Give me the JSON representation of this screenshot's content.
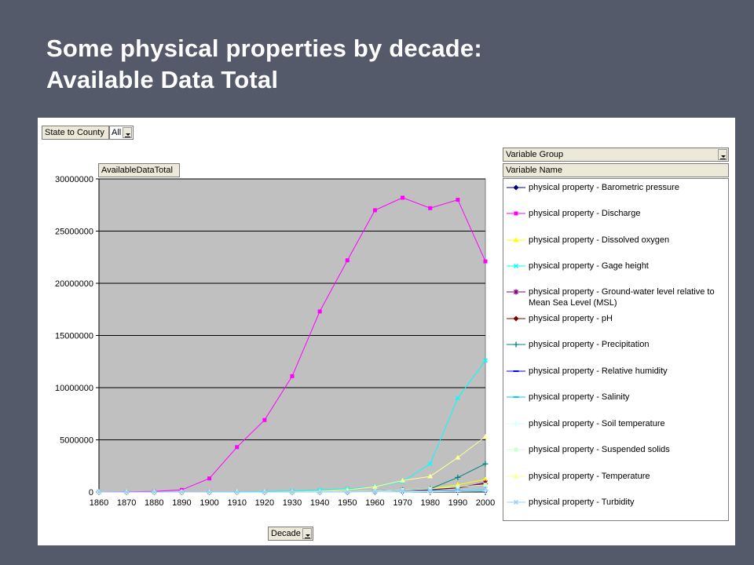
{
  "slide": {
    "title_line1": "Some physical properties by decade:",
    "title_line2": "Available Data Total"
  },
  "pivot": {
    "page_field_label": "State to County",
    "page_field_value": "All",
    "data_field_label": "AvailableDataTotal",
    "category_field_label": "Decade",
    "series_field_group": "Variable Group",
    "series_field_name": "Variable Name"
  },
  "chart_data": {
    "type": "line",
    "title": "",
    "xlabel": "",
    "ylabel": "",
    "x": [
      "1860",
      "1870",
      "1880",
      "1890",
      "1900",
      "1910",
      "1920",
      "1930",
      "1940",
      "1950",
      "1960",
      "1970",
      "1980",
      "1990",
      "2000"
    ],
    "ylim": [
      0,
      30000000
    ],
    "yticks": [
      "0",
      "5000000",
      "10000000",
      "15000000",
      "20000000",
      "25000000",
      "30000000"
    ],
    "grid": "horizontal",
    "plot_background": "#c0c0c0",
    "legend_position": "right",
    "series": [
      {
        "name": "physical property - Barometric pressure",
        "color": "#000080",
        "marker": "diamond",
        "values": [
          0,
          0,
          0,
          0,
          0,
          0,
          0,
          0,
          0,
          0,
          0,
          50000,
          80000,
          100000,
          100000
        ]
      },
      {
        "name": "physical property - Discharge",
        "color": "#ff00ff",
        "marker": "square",
        "values": [
          0,
          20000,
          50000,
          200000,
          1300000,
          4300000,
          6900000,
          11100000,
          17300000,
          22200000,
          27000000,
          28200000,
          27200000,
          28000000,
          22100000
        ]
      },
      {
        "name": "physical property - Dissolved oxygen",
        "color": "#ffff00",
        "marker": "triangle",
        "values": [
          0,
          0,
          0,
          0,
          0,
          0,
          0,
          10000,
          20000,
          50000,
          100000,
          200000,
          300000,
          700000,
          1200000
        ]
      },
      {
        "name": "physical property - Gage height",
        "color": "#00ffff",
        "marker": "x",
        "values": [
          0,
          0,
          0,
          0,
          0,
          20000,
          50000,
          100000,
          200000,
          300000,
          500000,
          1000000,
          2700000,
          9000000,
          12600000
        ]
      },
      {
        "name": "physical property - Ground-water level relative to Mean Sea Level (MSL)",
        "color": "#800080",
        "marker": "star",
        "values": [
          0,
          0,
          0,
          0,
          0,
          0,
          0,
          0,
          0,
          20000,
          100000,
          200000,
          250000,
          400000,
          900000
        ]
      },
      {
        "name": "physical property - pH",
        "color": "#800000",
        "marker": "diamond",
        "values": [
          0,
          0,
          0,
          0,
          0,
          0,
          0,
          0,
          10000,
          20000,
          50000,
          100000,
          200000,
          400000,
          800000
        ]
      },
      {
        "name": "physical property - Precipitation",
        "color": "#008080",
        "marker": "plus",
        "values": [
          0,
          0,
          0,
          0,
          0,
          0,
          0,
          0,
          20000,
          50000,
          100000,
          200000,
          300000,
          1400000,
          2700000
        ]
      },
      {
        "name": "physical property - Relative humidity",
        "color": "#0000ff",
        "marker": "dash",
        "values": [
          0,
          0,
          0,
          0,
          0,
          0,
          0,
          0,
          0,
          0,
          0,
          20000,
          50000,
          80000,
          100000
        ]
      },
      {
        "name": "physical property - Salinity",
        "color": "#00ccff",
        "marker": "dash",
        "values": [
          0,
          0,
          0,
          0,
          0,
          0,
          0,
          0,
          0,
          0,
          0,
          20000,
          50000,
          100000,
          150000
        ]
      },
      {
        "name": "physical property - Soil temperature",
        "color": "#ccffff",
        "marker": "plus",
        "values": [
          0,
          0,
          0,
          0,
          0,
          0,
          0,
          0,
          0,
          0,
          0,
          10000,
          30000,
          50000,
          80000
        ]
      },
      {
        "name": "physical property - Suspended solids",
        "color": "#ccffcc",
        "marker": "square",
        "values": [
          0,
          0,
          0,
          0,
          0,
          0,
          0,
          0,
          10000,
          50000,
          100000,
          200000,
          300000,
          500000,
          700000
        ]
      },
      {
        "name": "physical property - Temperature",
        "color": "#ffff99",
        "marker": "triangle",
        "values": [
          0,
          0,
          0,
          0,
          0,
          0,
          0,
          20000,
          50000,
          200000,
          500000,
          1100000,
          1500000,
          3300000,
          5300000
        ]
      },
      {
        "name": "physical property - Turbidity",
        "color": "#99ccff",
        "marker": "x",
        "values": [
          0,
          0,
          0,
          0,
          0,
          0,
          0,
          0,
          0,
          0,
          50000,
          100000,
          150000,
          200000,
          300000
        ]
      }
    ]
  }
}
